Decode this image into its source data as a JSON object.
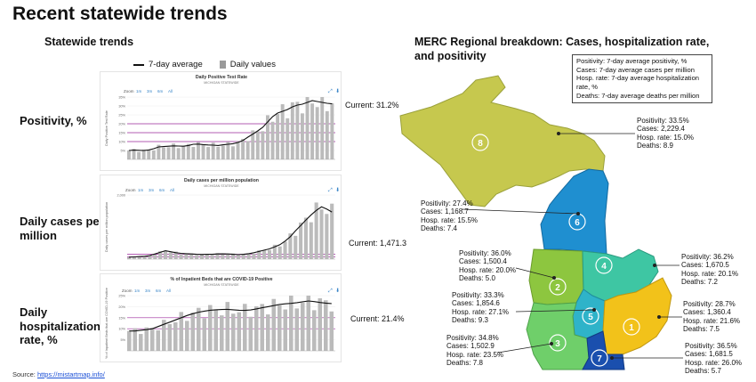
{
  "title": "Recent statewide trends",
  "left_heading": "Statewide trends",
  "right_heading": "MERC Regional breakdown: Cases, hospitalization rate, and positivity",
  "legend": {
    "line_label": "7-day average",
    "bar_label": "Daily values"
  },
  "colors": {
    "line": "#111111",
    "bar": "#bbbbbb",
    "band": "#9d2a9d",
    "accent": "#3a86c8"
  },
  "zoom": {
    "label": "Zoom",
    "options": [
      "1m",
      "3m",
      "6m",
      "All"
    ]
  },
  "metrics": [
    {
      "label": "Positivity, %",
      "current": "Current: 31.2%"
    },
    {
      "label": "Daily cases per million",
      "current": "Current: 1,471.3"
    },
    {
      "label": "Daily hospitalization rate, %",
      "current": "Current: 21.4%"
    }
  ],
  "source": {
    "prefix": "Source: ",
    "link": "https://mistartmap.info/"
  },
  "key_box": [
    "Positivity: 7-day average positivity, %",
    "Cases: 7-day average cases per million",
    "Hosp. rate: 7-day average hospitalization rate, %",
    "Deaths: 7-day average deaths per million"
  ],
  "regions": [
    {
      "num": "8",
      "color": "#c6c84e",
      "positivity": "Positivity:  33.5%",
      "cases": "Cases: 2,229.4",
      "hosp": "Hosp. rate: 15.0%",
      "deaths": "Deaths: 8.9"
    },
    {
      "num": "6",
      "color": "#1f8fd0",
      "positivity": "Positivity: 27.4%",
      "cases": "Cases: 1,168.7",
      "hosp": "Hosp. rate: 15.5%",
      "deaths": "Deaths: 7.4"
    },
    {
      "num": "2",
      "color": "#8dc63f",
      "positivity": "Positivity: 36.0%",
      "cases": "Cases: 1,500.4",
      "hosp": "Hosp. rate: 20.0%",
      "deaths": "Deaths: 5.0"
    },
    {
      "num": "4",
      "color": "#3ec6a3",
      "positivity": "Positivity: 36.2%",
      "cases": "Cases: 1,670.5",
      "hosp": "Hosp. rate: 20.1%",
      "deaths": "Deaths: 7.2"
    },
    {
      "num": "5",
      "color": "#2fb3c9",
      "positivity": "Positivity: 33.3%",
      "cases": "Cases: 1,854.6",
      "hosp": "Hosp. rate: 27.1%",
      "deaths": "Deaths: 9.3"
    },
    {
      "num": "1",
      "color": "#f2c21a",
      "positivity": "Positivity: 28.7%",
      "cases": "Cases: 1,360.4",
      "hosp": "Hosp. rate: 21.6%",
      "deaths": "Deaths: 7.5"
    },
    {
      "num": "3",
      "color": "#6fcf6a",
      "positivity": "Positivity: 34.8%",
      "cases": "Cases: 1,502.9",
      "hosp": "Hosp. rate: 23.5%",
      "deaths": "Deaths: 7.8"
    },
    {
      "num": "7",
      "color": "#1a4fae",
      "positivity": "Positivity: 36.5%",
      "cases": "Cases: 1,681.5",
      "hosp": "Hosp. rate: 26.0%",
      "deaths": "Deaths: 5.7"
    }
  ],
  "chart_data": [
    {
      "type": "line",
      "title": "Daily Positive Test Rate",
      "subtitle": "MICHIGAN STATEWIDE",
      "ylabel": "Daily Positive Test Rate",
      "ylim": [
        0,
        35
      ],
      "yticks": [
        "35%",
        "30%",
        "25%",
        "20%",
        "15%",
        "10%",
        "5%"
      ],
      "series": [
        {
          "name": "7-day average",
          "values": [
            5,
            5.2,
            5.1,
            5,
            5.3,
            6,
            7,
            7.2,
            7.4,
            7.6,
            7.5,
            7.4,
            7.8,
            8.5,
            8.6,
            8.3,
            8.1,
            8.0,
            7.8,
            8.2,
            8.5,
            8.8,
            9.5,
            10.6,
            12.5,
            14.2,
            16,
            18,
            21,
            24,
            26,
            27,
            28,
            29.5,
            30.5,
            31,
            32,
            33,
            32.5,
            32,
            31.5,
            31.2
          ]
        }
      ]
    },
    {
      "type": "line",
      "title": "Daily cases per million population",
      "subtitle": "MICHIGAN STATEWIDE",
      "ylabel": "Daily cases per million population",
      "ylim": [
        0,
        2000
      ],
      "yticks": [
        "2,000"
      ],
      "series": [
        {
          "name": "7-day average",
          "values": [
            60,
            70,
            80,
            90,
            110,
            160,
            210,
            260,
            230,
            200,
            180,
            170,
            160,
            150,
            145,
            150,
            150,
            160,
            165,
            160,
            150,
            140,
            150,
            170,
            200,
            240,
            280,
            320,
            380,
            450,
            560,
            700,
            880,
            1050,
            1220,
            1380,
            1520,
            1630,
            1560,
            1470
          ]
        }
      ]
    },
    {
      "type": "line",
      "title": "% of Inpatient Beds that are COVID-19 Positive",
      "subtitle": "MICHIGAN STATEWIDE",
      "ylabel": "% of Inpatient Beds that are COVID-19 Positive",
      "ylim": [
        0,
        25
      ],
      "yticks": [
        "25%",
        "20%",
        "15%",
        "10%",
        "5%"
      ],
      "series": [
        {
          "name": "7-day average",
          "values": [
            9,
            9,
            9.3,
            9.6,
            10,
            11,
            12,
            13,
            14,
            15,
            16,
            16.8,
            17.5,
            18,
            18.4,
            18.6,
            18.7,
            18.8,
            18.6,
            18.4,
            18.3,
            18.5,
            19,
            19.5,
            20,
            20.5,
            21,
            21.3,
            21.5,
            21.8,
            22.2,
            22.6,
            22.3,
            21.9,
            21.6,
            21.4
          ]
        }
      ]
    }
  ]
}
